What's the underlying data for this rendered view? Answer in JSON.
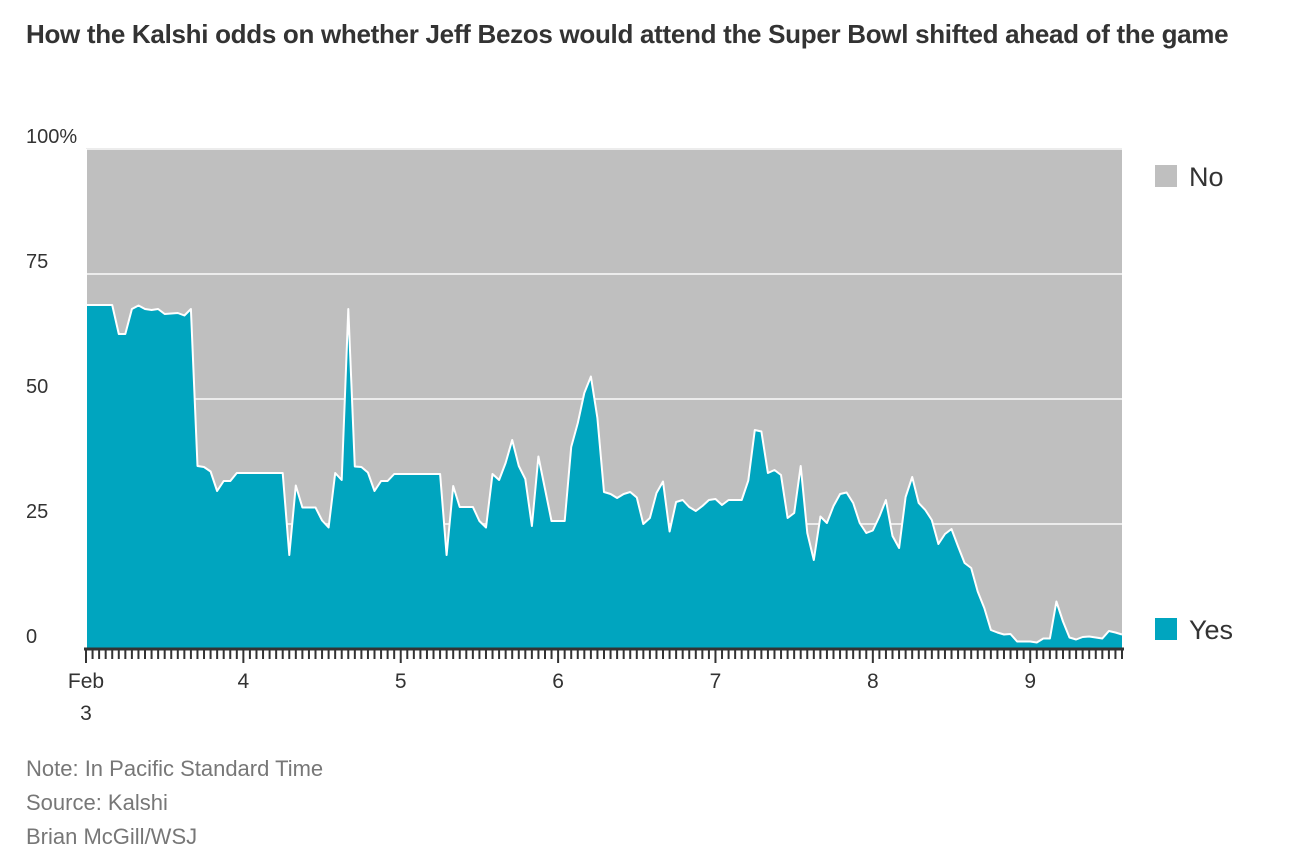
{
  "chart_data": {
    "type": "area",
    "title": "How the Kalshi odds on whether Jeff Bezos would attend the Super Bowl shifted ahead of the game",
    "xlabel": "",
    "ylabel": "",
    "x_unit": "hours since Feb 3 00:00 PST",
    "xlim": [
      0,
      158
    ],
    "ylim": [
      0,
      100
    ],
    "y_ticks": [
      0,
      25,
      50,
      75,
      100
    ],
    "y_tick_labels": [
      "0",
      "25",
      "50",
      "75",
      "100%"
    ],
    "x_tick_labels": [
      {
        "hour": 0,
        "line1": "Feb",
        "line2": "3"
      },
      {
        "hour": 24,
        "line1": "4"
      },
      {
        "hour": 48,
        "line1": "5"
      },
      {
        "hour": 72,
        "line1": "6"
      },
      {
        "hour": 96,
        "line1": "7"
      },
      {
        "hour": 120,
        "line1": "8"
      },
      {
        "hour": 144,
        "line1": "9"
      }
    ],
    "grid": true,
    "legend": [
      {
        "label": "No",
        "color": "#bfbfbf",
        "placement": "top-right"
      },
      {
        "label": "Yes",
        "color": "#00a5bf",
        "placement": "bottom-right"
      }
    ],
    "series": [
      {
        "name": "Yes",
        "x": [
          0,
          4,
          5,
          6,
          7,
          8,
          9,
          10,
          11,
          12,
          14,
          15,
          16,
          17,
          18,
          19,
          20,
          21,
          22,
          23,
          30,
          31,
          32,
          33,
          35,
          36,
          37,
          38,
          39,
          40,
          41,
          42,
          43,
          44,
          45,
          46,
          47,
          54,
          55,
          56,
          57,
          59,
          60,
          61,
          62,
          63,
          64,
          65,
          66,
          67,
          68,
          69,
          70,
          71,
          73,
          74,
          75,
          76,
          77,
          78,
          79,
          80,
          81,
          82,
          83,
          84,
          85,
          86,
          87,
          88,
          89,
          90,
          91,
          92,
          93,
          94,
          95,
          96,
          97,
          98,
          100,
          101,
          102,
          103,
          104,
          105,
          106,
          107,
          108,
          109,
          110,
          111,
          112,
          113,
          114,
          115,
          116,
          117,
          118,
          119,
          120,
          121,
          122,
          123,
          124,
          125,
          126,
          127,
          128,
          129,
          130,
          131,
          132,
          133,
          134,
          135,
          136,
          137,
          138,
          139,
          140,
          141,
          142,
          144,
          145,
          146,
          147,
          148,
          149,
          150,
          151,
          152,
          153,
          154,
          155,
          156,
          157,
          158
        ],
        "values": [
          68.8,
          68.8,
          63,
          63,
          68,
          68.7,
          68,
          67.8,
          68,
          67,
          67.2,
          66.7,
          68,
          36.6,
          36.4,
          35.5,
          31.6,
          33.6,
          33.6,
          35.2,
          35.2,
          18.8,
          32.7,
          28.3,
          28.3,
          25.7,
          24.3,
          35.2,
          33.8,
          68,
          36.5,
          36.4,
          35.3,
          31.6,
          33.6,
          33.6,
          35,
          35,
          18.8,
          32.6,
          28.4,
          28.4,
          25.6,
          24.3,
          35,
          33.8,
          37.2,
          41.8,
          36.6,
          34,
          24.6,
          38.5,
          32,
          25.6,
          25.6,
          40.4,
          45.2,
          51.2,
          54.5,
          46.2,
          31.4,
          31,
          30.2,
          31,
          31.4,
          30.3,
          25,
          26.2,
          31.2,
          33.5,
          23.5,
          29.4,
          29.8,
          28.4,
          27.6,
          28.6,
          29.8,
          30,
          28.8,
          29.8,
          29.8,
          33.7,
          43.8,
          43.5,
          35.2,
          35.8,
          34.8,
          26.2,
          27.2,
          36.6,
          23.2,
          17.8,
          26.5,
          25.2,
          28.6,
          31,
          31.3,
          29.2,
          25.2,
          23.2,
          23.7,
          26.5,
          29.8,
          22.6,
          20.2,
          30.4,
          34.4,
          29.2,
          27.8,
          25.8,
          21,
          23,
          24,
          20.5,
          17.2,
          16.2,
          11.5,
          8.2,
          3.8,
          3.3,
          2.9,
          3,
          1.5,
          1.5,
          1.3,
          2.1,
          2.1,
          9.5,
          5.5,
          2.3,
          1.9,
          2.4,
          2.5,
          2.3,
          2.1,
          3.6,
          3.3,
          2.9
        ]
      }
    ]
  },
  "notes": {
    "note": "Note: In Pacific Standard Time",
    "source": "Source: Kalshi",
    "credit": "Brian McGill/WSJ"
  },
  "colors": {
    "yes": "#00a5bf",
    "no": "#bfbfbf",
    "grid": "#ececec",
    "axis": "#333333"
  }
}
